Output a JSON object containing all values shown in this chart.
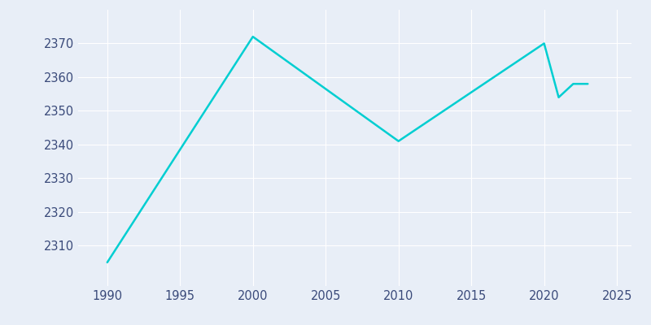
{
  "years": [
    1990,
    2000,
    2010,
    2020,
    2021,
    2022,
    2023
  ],
  "population": [
    2305,
    2372,
    2341,
    2370,
    2354,
    2358,
    2358
  ],
  "line_color": "#00CED1",
  "bg_color": "#E8EEF7",
  "axes_bg_color": "#E8EEF7",
  "grid_color": "#FFFFFF",
  "tick_label_color": "#3a4a7a",
  "xlim": [
    1988,
    2026
  ],
  "ylim": [
    2298,
    2380
  ],
  "xticks": [
    1990,
    1995,
    2000,
    2005,
    2010,
    2015,
    2020,
    2025
  ],
  "yticks": [
    2310,
    2320,
    2330,
    2340,
    2350,
    2360,
    2370
  ],
  "linewidth": 1.8,
  "figsize": [
    8.0,
    4.0
  ],
  "dpi": 100
}
